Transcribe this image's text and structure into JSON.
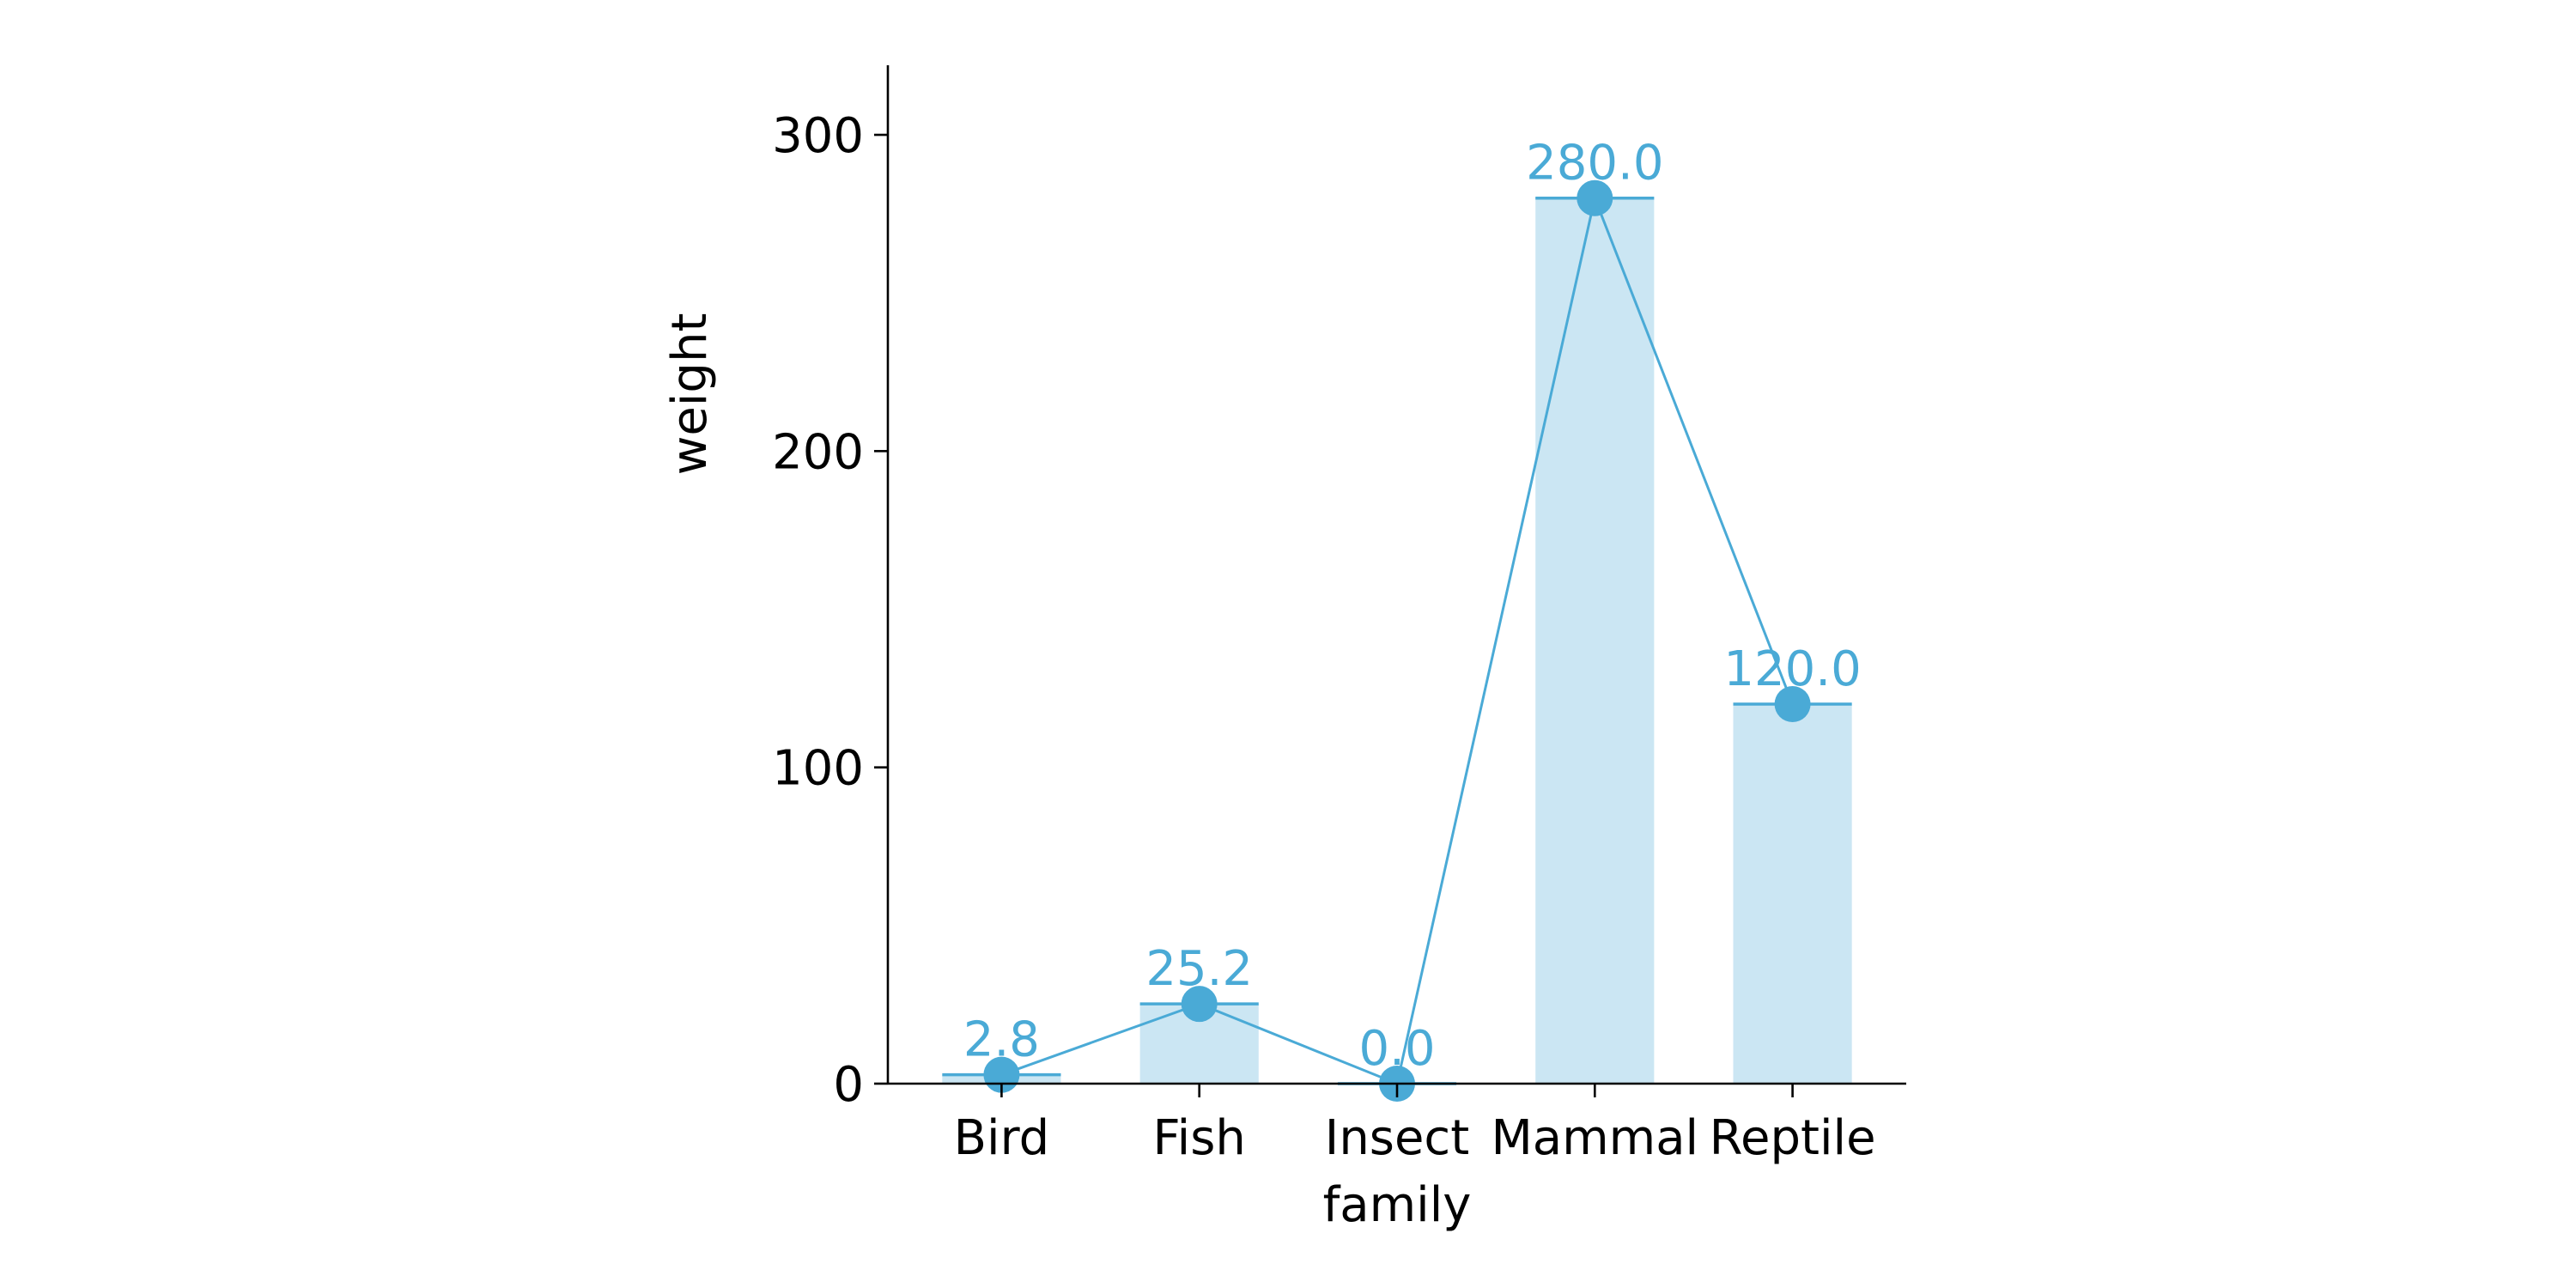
{
  "chart_data": {
    "type": "bar",
    "categories": [
      "Bird",
      "Fish",
      "Insect",
      "Mammal",
      "Reptile"
    ],
    "values": [
      2.8,
      25.2,
      0.0,
      280.0,
      120.0
    ],
    "value_labels": [
      "2.8",
      "25.2",
      "0.0",
      "280.0",
      "120.0"
    ],
    "overlay": "line",
    "title": "",
    "xlabel": "family",
    "ylabel": "weight",
    "ylim": [
      0,
      322
    ],
    "yticks": [
      0,
      100,
      200,
      300
    ],
    "ytick_labels": [
      "0",
      "100",
      "200",
      "300"
    ],
    "grid": false,
    "legend": "none",
    "colors": {
      "accent": "#4aaad6",
      "bar_fill": "#cbe6f3",
      "axis": "#000000"
    }
  }
}
